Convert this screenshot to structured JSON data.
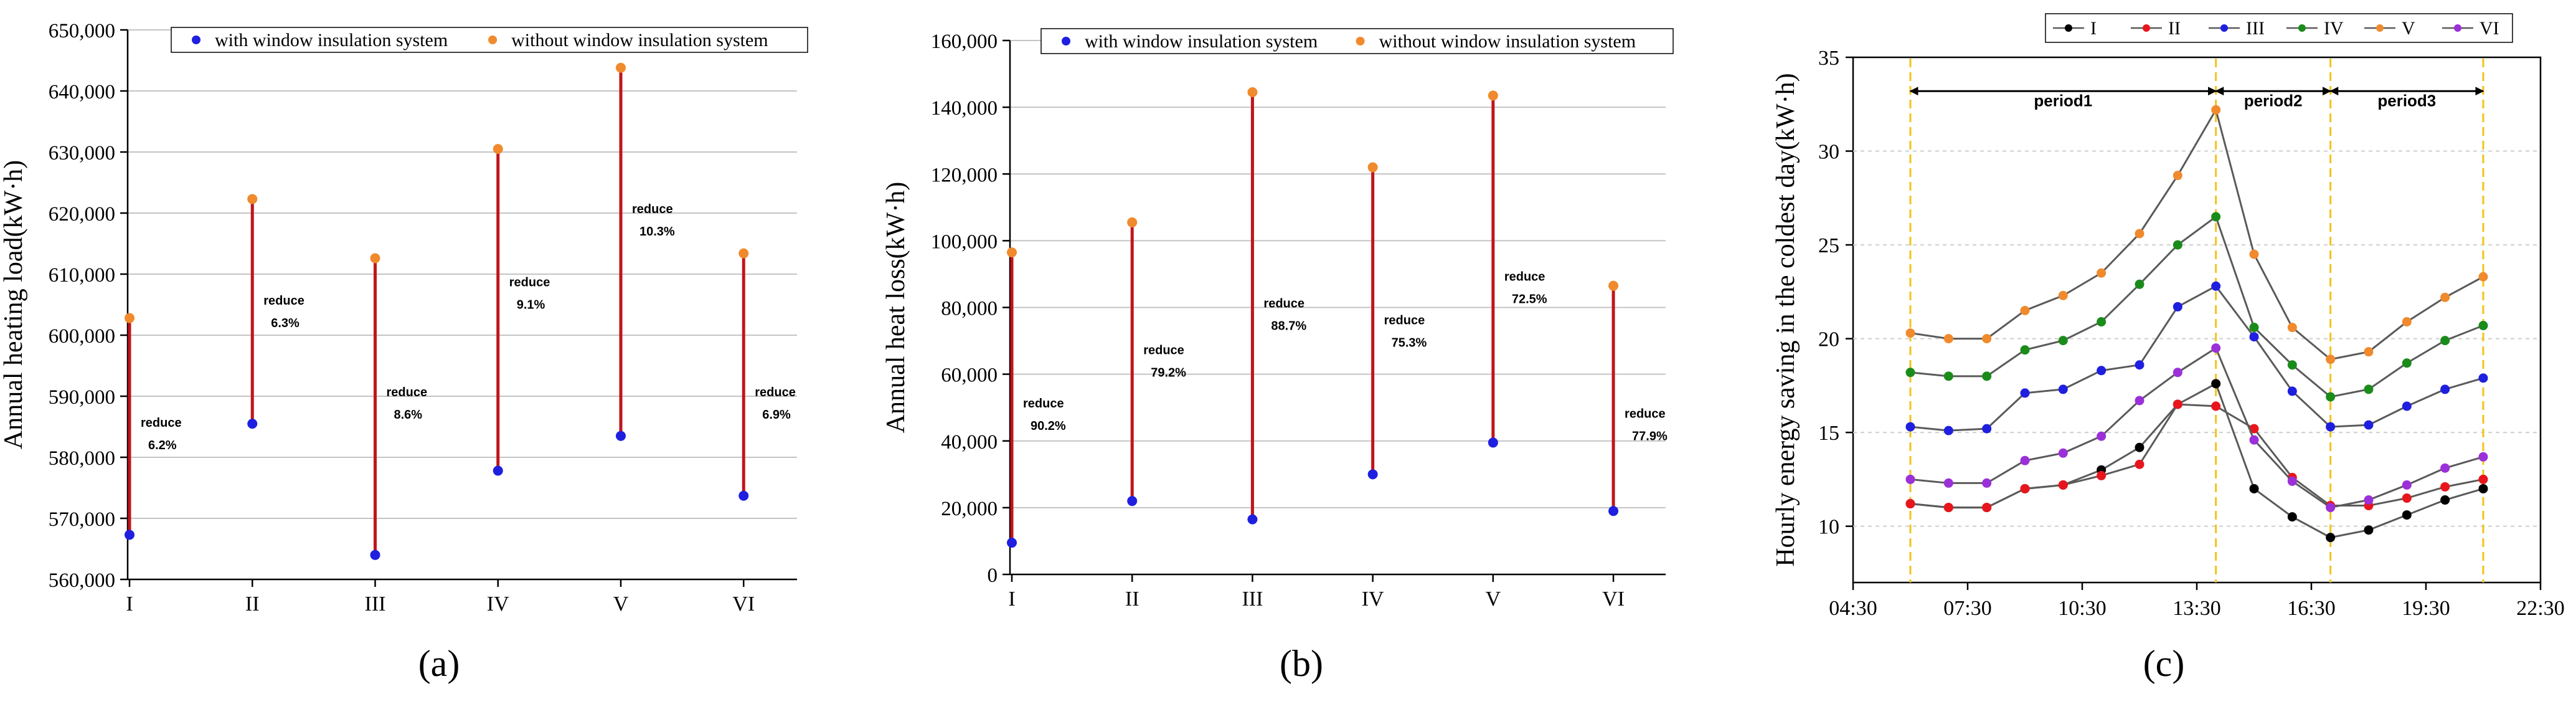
{
  "chart_data": [
    {
      "type": "dumbbell",
      "panel_label": "(a)",
      "ylabel": "Annual heating load(kW·h)",
      "ylim": [
        560000,
        650000
      ],
      "yticks": [
        560000,
        570000,
        580000,
        590000,
        600000,
        610000,
        620000,
        630000,
        640000,
        650000
      ],
      "ytick_labels": [
        "560,000",
        "570,000",
        "580,000",
        "590,000",
        "600,000",
        "610,000",
        "620,000",
        "630,000",
        "640,000",
        "650,000"
      ],
      "categories": [
        "I",
        "II",
        "III",
        "IV",
        "V",
        "VI"
      ],
      "legend": {
        "position": "top",
        "with_label": "with window insulation system",
        "without_label": "without window insulation system"
      },
      "series": [
        {
          "name": "with window insulation system",
          "color": "#1f1fe0",
          "values": [
            567300,
            585500,
            564000,
            577800,
            583500,
            573700
          ]
        },
        {
          "name": "without window insulation system",
          "color": "#f08a2c",
          "values": [
            602800,
            622300,
            612600,
            630500,
            643800,
            613400
          ]
        }
      ],
      "line_color": "#c0151b",
      "annotations": [
        {
          "line1": "reduce",
          "line2": "6.2%"
        },
        {
          "line1": "reduce",
          "line2": "6.3%"
        },
        {
          "line1": "reduce",
          "line2": "8.6%"
        },
        {
          "line1": "reduce",
          "line2": "9.1%"
        },
        {
          "line1": "reduce",
          "line2": "10.3%"
        },
        {
          "line1": "reduce",
          "line2": "6.9%"
        }
      ],
      "annotation_at": [
        585000,
        605000,
        590000,
        608000,
        620000,
        590000
      ]
    },
    {
      "type": "dumbbell",
      "panel_label": "(b)",
      "ylabel": "Annual heat loss(kW·h)",
      "ylim": [
        0,
        160000
      ],
      "yticks": [
        0,
        20000,
        40000,
        60000,
        80000,
        100000,
        120000,
        140000,
        160000
      ],
      "ytick_labels": [
        "0",
        "20,000",
        "40,000",
        "60,000",
        "80,000",
        "100,000",
        "120,000",
        "140,000",
        "160,000"
      ],
      "categories": [
        "I",
        "II",
        "III",
        "IV",
        "V",
        "VI"
      ],
      "legend": {
        "position": "top",
        "with_label": "with window insulation system",
        "without_label": "without window insulation system"
      },
      "series": [
        {
          "name": "with window insulation system",
          "color": "#1f1fe0",
          "values": [
            9500,
            22000,
            16500,
            30000,
            39500,
            19000
          ]
        },
        {
          "name": "without window insulation system",
          "color": "#f08a2c",
          "values": [
            96500,
            105500,
            144500,
            122000,
            143500,
            86500
          ]
        }
      ],
      "line_color": "#c0151b",
      "annotations": [
        {
          "line1": "reduce",
          "line2": "90.2%"
        },
        {
          "line1": "reduce",
          "line2": "79.2%"
        },
        {
          "line1": "reduce",
          "line2": "88.7%"
        },
        {
          "line1": "reduce",
          "line2": "75.3%"
        },
        {
          "line1": "reduce",
          "line2": "72.5%"
        },
        {
          "line1": "reduce",
          "line2": "77.9%"
        }
      ],
      "annotation_at": [
        50000,
        66000,
        80000,
        75000,
        88000,
        47000
      ]
    },
    {
      "type": "line",
      "panel_label": "(c)",
      "ylabel": "Hourly energy saving in the coldest day(kW·h)",
      "ylim": [
        7,
        35
      ],
      "yticks": [
        10,
        15,
        20,
        25,
        30,
        35
      ],
      "ytick_labels": [
        "10",
        "15",
        "20",
        "25",
        "30",
        "35"
      ],
      "xlim": [
        4.5,
        22.5
      ],
      "xticks": [
        4.5,
        7.5,
        10.5,
        13.5,
        16.5,
        19.5,
        22.5
      ],
      "xtick_labels": [
        "04:30",
        "07:30",
        "10:30",
        "13:30",
        "16:30",
        "19:30",
        "22:30"
      ],
      "x": [
        6,
        7,
        8,
        9,
        10,
        11,
        12,
        13,
        14,
        15,
        16,
        17,
        18,
        19,
        20,
        21
      ],
      "legend": {
        "position": "top-right"
      },
      "series": [
        {
          "name": "I",
          "color": "#000000",
          "values": [
            11.2,
            11.0,
            11.0,
            12.0,
            12.2,
            13.0,
            14.2,
            16.5,
            17.6,
            12.0,
            10.5,
            9.4,
            9.8,
            10.6,
            11.4,
            12.0
          ]
        },
        {
          "name": "II",
          "color": "#e8161c",
          "values": [
            11.2,
            11.0,
            11.0,
            12.0,
            12.2,
            12.7,
            13.3,
            16.5,
            16.4,
            15.2,
            12.6,
            11.1,
            11.1,
            11.5,
            12.1,
            12.5
          ]
        },
        {
          "name": "III",
          "color": "#1f1fe0",
          "values": [
            15.3,
            15.1,
            15.2,
            17.1,
            17.3,
            18.3,
            18.6,
            21.7,
            22.8,
            20.1,
            17.2,
            15.3,
            15.4,
            16.4,
            17.3,
            17.9
          ]
        },
        {
          "name": "IV",
          "color": "#1a8c1a",
          "values": [
            18.2,
            18.0,
            18.0,
            19.4,
            19.9,
            20.9,
            22.9,
            25.0,
            26.5,
            20.6,
            18.6,
            16.9,
            17.3,
            18.7,
            19.9,
            20.7
          ]
        },
        {
          "name": "V",
          "color": "#f08a2c",
          "values": [
            20.3,
            20.0,
            20.0,
            21.5,
            22.3,
            23.5,
            25.6,
            28.7,
            32.2,
            24.5,
            20.6,
            18.9,
            19.3,
            20.9,
            22.2,
            23.3
          ]
        },
        {
          "name": "VI",
          "color": "#9b30d9",
          "values": [
            12.5,
            12.3,
            12.3,
            13.5,
            13.9,
            14.8,
            16.7,
            18.2,
            19.5,
            14.6,
            12.4,
            11.0,
            11.4,
            12.2,
            13.1,
            13.7
          ]
        }
      ],
      "periods": [
        {
          "label": "period1",
          "from": 6.0,
          "to": 14.0
        },
        {
          "label": "period2",
          "from": 14.0,
          "to": 17.0
        },
        {
          "label": "period3",
          "from": 17.0,
          "to": 21.0
        }
      ],
      "period_boundaries": [
        6.0,
        14.0,
        17.0,
        21.0
      ],
      "period_arrow_y": 33.2,
      "period_label_y": 32.4,
      "boundary_color": "#f2c318"
    }
  ]
}
